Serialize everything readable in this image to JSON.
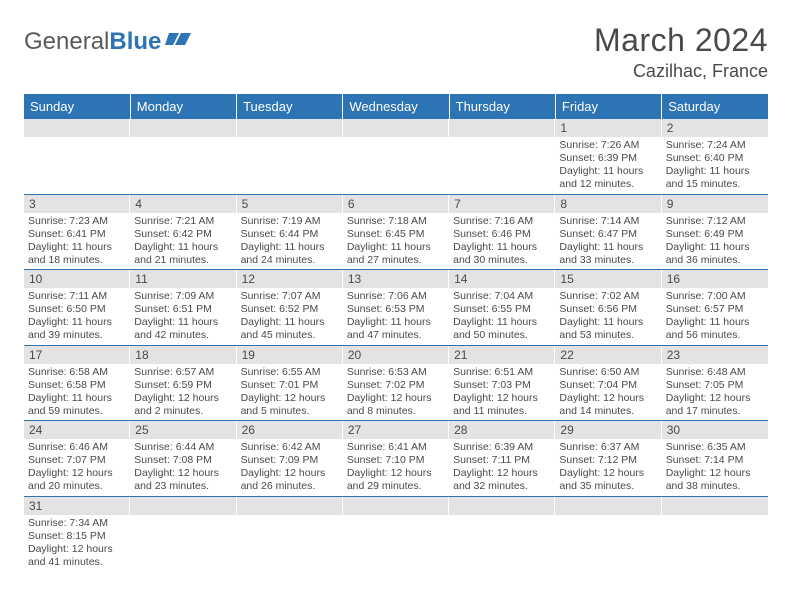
{
  "brand": {
    "part1": "General",
    "part2": "Blue"
  },
  "title": "March 2024",
  "location": "Cazilhac, France",
  "colors": {
    "header_bg": "#2d74b5",
    "header_text": "#ffffff",
    "daynum_bg": "#e3e3e3",
    "body_text": "#4a4a4a",
    "divider": "#2d74b5"
  },
  "weekdays": [
    "Sunday",
    "Monday",
    "Tuesday",
    "Wednesday",
    "Thursday",
    "Friday",
    "Saturday"
  ],
  "weeks": [
    [
      null,
      null,
      null,
      null,
      null,
      {
        "n": "1",
        "sr": "Sunrise: 7:26 AM",
        "ss": "Sunset: 6:39 PM",
        "d1": "Daylight: 11 hours",
        "d2": "and 12 minutes."
      },
      {
        "n": "2",
        "sr": "Sunrise: 7:24 AM",
        "ss": "Sunset: 6:40 PM",
        "d1": "Daylight: 11 hours",
        "d2": "and 15 minutes."
      }
    ],
    [
      {
        "n": "3",
        "sr": "Sunrise: 7:23 AM",
        "ss": "Sunset: 6:41 PM",
        "d1": "Daylight: 11 hours",
        "d2": "and 18 minutes."
      },
      {
        "n": "4",
        "sr": "Sunrise: 7:21 AM",
        "ss": "Sunset: 6:42 PM",
        "d1": "Daylight: 11 hours",
        "d2": "and 21 minutes."
      },
      {
        "n": "5",
        "sr": "Sunrise: 7:19 AM",
        "ss": "Sunset: 6:44 PM",
        "d1": "Daylight: 11 hours",
        "d2": "and 24 minutes."
      },
      {
        "n": "6",
        "sr": "Sunrise: 7:18 AM",
        "ss": "Sunset: 6:45 PM",
        "d1": "Daylight: 11 hours",
        "d2": "and 27 minutes."
      },
      {
        "n": "7",
        "sr": "Sunrise: 7:16 AM",
        "ss": "Sunset: 6:46 PM",
        "d1": "Daylight: 11 hours",
        "d2": "and 30 minutes."
      },
      {
        "n": "8",
        "sr": "Sunrise: 7:14 AM",
        "ss": "Sunset: 6:47 PM",
        "d1": "Daylight: 11 hours",
        "d2": "and 33 minutes."
      },
      {
        "n": "9",
        "sr": "Sunrise: 7:12 AM",
        "ss": "Sunset: 6:49 PM",
        "d1": "Daylight: 11 hours",
        "d2": "and 36 minutes."
      }
    ],
    [
      {
        "n": "10",
        "sr": "Sunrise: 7:11 AM",
        "ss": "Sunset: 6:50 PM",
        "d1": "Daylight: 11 hours",
        "d2": "and 39 minutes."
      },
      {
        "n": "11",
        "sr": "Sunrise: 7:09 AM",
        "ss": "Sunset: 6:51 PM",
        "d1": "Daylight: 11 hours",
        "d2": "and 42 minutes."
      },
      {
        "n": "12",
        "sr": "Sunrise: 7:07 AM",
        "ss": "Sunset: 6:52 PM",
        "d1": "Daylight: 11 hours",
        "d2": "and 45 minutes."
      },
      {
        "n": "13",
        "sr": "Sunrise: 7:06 AM",
        "ss": "Sunset: 6:53 PM",
        "d1": "Daylight: 11 hours",
        "d2": "and 47 minutes."
      },
      {
        "n": "14",
        "sr": "Sunrise: 7:04 AM",
        "ss": "Sunset: 6:55 PM",
        "d1": "Daylight: 11 hours",
        "d2": "and 50 minutes."
      },
      {
        "n": "15",
        "sr": "Sunrise: 7:02 AM",
        "ss": "Sunset: 6:56 PM",
        "d1": "Daylight: 11 hours",
        "d2": "and 53 minutes."
      },
      {
        "n": "16",
        "sr": "Sunrise: 7:00 AM",
        "ss": "Sunset: 6:57 PM",
        "d1": "Daylight: 11 hours",
        "d2": "and 56 minutes."
      }
    ],
    [
      {
        "n": "17",
        "sr": "Sunrise: 6:58 AM",
        "ss": "Sunset: 6:58 PM",
        "d1": "Daylight: 11 hours",
        "d2": "and 59 minutes."
      },
      {
        "n": "18",
        "sr": "Sunrise: 6:57 AM",
        "ss": "Sunset: 6:59 PM",
        "d1": "Daylight: 12 hours",
        "d2": "and 2 minutes."
      },
      {
        "n": "19",
        "sr": "Sunrise: 6:55 AM",
        "ss": "Sunset: 7:01 PM",
        "d1": "Daylight: 12 hours",
        "d2": "and 5 minutes."
      },
      {
        "n": "20",
        "sr": "Sunrise: 6:53 AM",
        "ss": "Sunset: 7:02 PM",
        "d1": "Daylight: 12 hours",
        "d2": "and 8 minutes."
      },
      {
        "n": "21",
        "sr": "Sunrise: 6:51 AM",
        "ss": "Sunset: 7:03 PM",
        "d1": "Daylight: 12 hours",
        "d2": "and 11 minutes."
      },
      {
        "n": "22",
        "sr": "Sunrise: 6:50 AM",
        "ss": "Sunset: 7:04 PM",
        "d1": "Daylight: 12 hours",
        "d2": "and 14 minutes."
      },
      {
        "n": "23",
        "sr": "Sunrise: 6:48 AM",
        "ss": "Sunset: 7:05 PM",
        "d1": "Daylight: 12 hours",
        "d2": "and 17 minutes."
      }
    ],
    [
      {
        "n": "24",
        "sr": "Sunrise: 6:46 AM",
        "ss": "Sunset: 7:07 PM",
        "d1": "Daylight: 12 hours",
        "d2": "and 20 minutes."
      },
      {
        "n": "25",
        "sr": "Sunrise: 6:44 AM",
        "ss": "Sunset: 7:08 PM",
        "d1": "Daylight: 12 hours",
        "d2": "and 23 minutes."
      },
      {
        "n": "26",
        "sr": "Sunrise: 6:42 AM",
        "ss": "Sunset: 7:09 PM",
        "d1": "Daylight: 12 hours",
        "d2": "and 26 minutes."
      },
      {
        "n": "27",
        "sr": "Sunrise: 6:41 AM",
        "ss": "Sunset: 7:10 PM",
        "d1": "Daylight: 12 hours",
        "d2": "and 29 minutes."
      },
      {
        "n": "28",
        "sr": "Sunrise: 6:39 AM",
        "ss": "Sunset: 7:11 PM",
        "d1": "Daylight: 12 hours",
        "d2": "and 32 minutes."
      },
      {
        "n": "29",
        "sr": "Sunrise: 6:37 AM",
        "ss": "Sunset: 7:12 PM",
        "d1": "Daylight: 12 hours",
        "d2": "and 35 minutes."
      },
      {
        "n": "30",
        "sr": "Sunrise: 6:35 AM",
        "ss": "Sunset: 7:14 PM",
        "d1": "Daylight: 12 hours",
        "d2": "and 38 minutes."
      }
    ],
    [
      {
        "n": "31",
        "sr": "Sunrise: 7:34 AM",
        "ss": "Sunset: 8:15 PM",
        "d1": "Daylight: 12 hours",
        "d2": "and 41 minutes."
      },
      null,
      null,
      null,
      null,
      null,
      null
    ]
  ]
}
